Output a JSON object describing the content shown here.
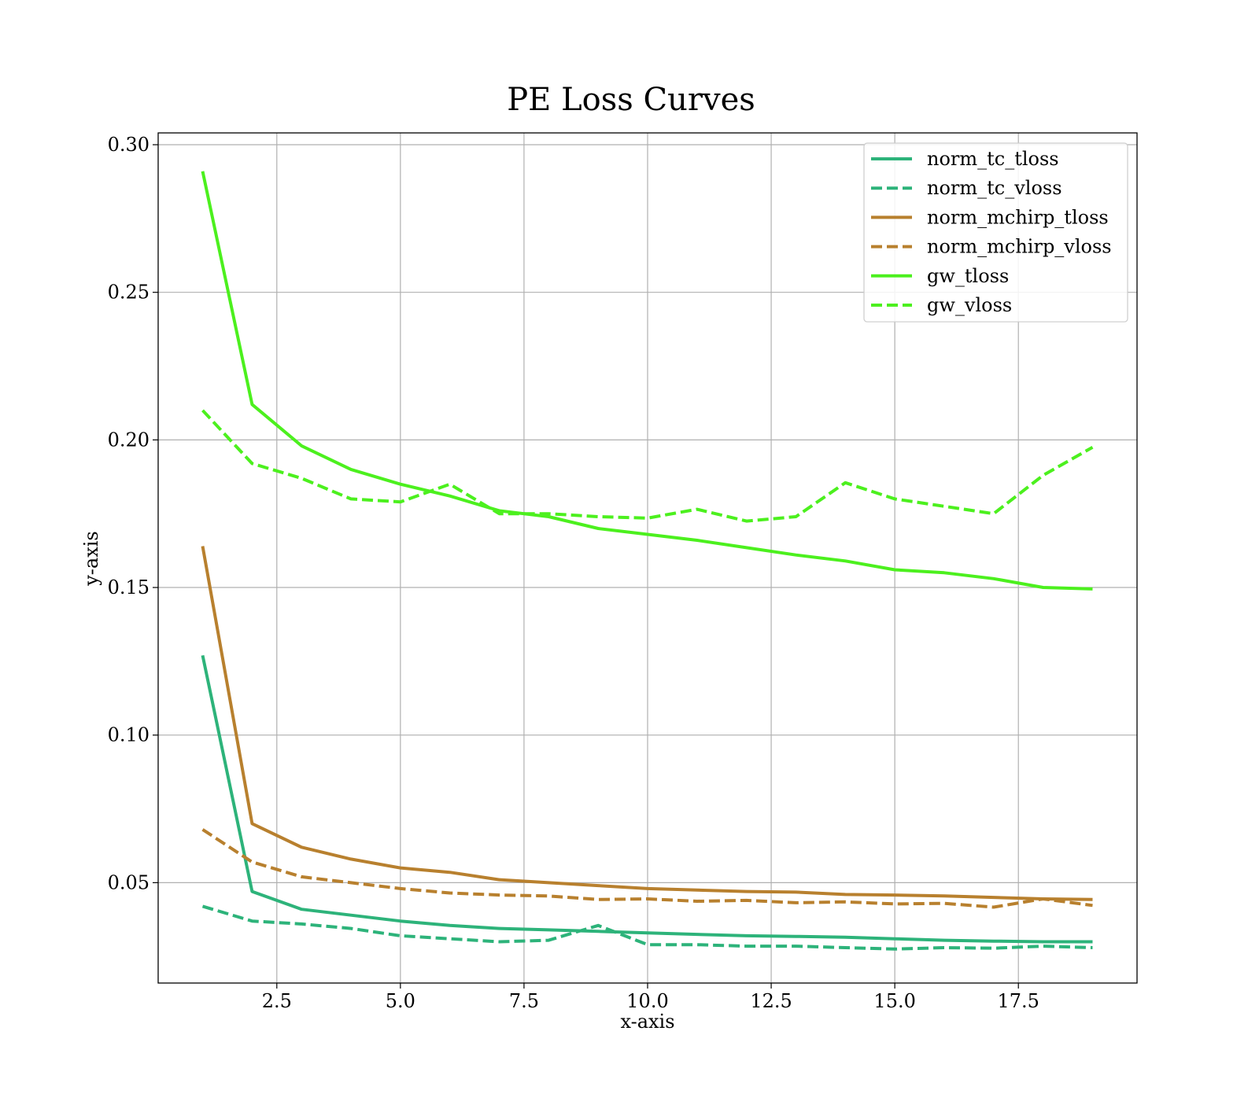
{
  "chart_data": {
    "type": "line",
    "title": "PE Loss Curves",
    "xlabel": "x-axis",
    "ylabel": "y-axis",
    "xlim": [
      0.1,
      19.9
    ],
    "ylim": [
      0.016,
      0.304
    ],
    "grid": true,
    "legend_position": "top-right",
    "xticks": [
      2.5,
      5.0,
      7.5,
      10.0,
      12.5,
      15.0,
      17.5
    ],
    "xtick_labels": [
      "2.5",
      "5.0",
      "7.5",
      "10.0",
      "12.5",
      "15.0",
      "17.5"
    ],
    "yticks": [
      0.05,
      0.1,
      0.15,
      0.2,
      0.25,
      0.3
    ],
    "ytick_labels": [
      "0.05",
      "0.10",
      "0.15",
      "0.20",
      "0.25",
      "0.30"
    ],
    "x": [
      1,
      2,
      3,
      4,
      5,
      6,
      7,
      8,
      9,
      10,
      11,
      12,
      13,
      14,
      15,
      16,
      17,
      18,
      19
    ],
    "series": [
      {
        "name": "norm_tc_tloss",
        "color": "#2db37a",
        "style": "solid",
        "values": [
          0.127,
          0.047,
          0.041,
          0.039,
          0.037,
          0.0355,
          0.0345,
          0.034,
          0.0335,
          0.033,
          0.0325,
          0.032,
          0.0318,
          0.0315,
          0.031,
          0.0305,
          0.0302,
          0.03,
          0.03
        ]
      },
      {
        "name": "norm_tc_vloss",
        "color": "#2db37a",
        "style": "dashed",
        "values": [
          0.042,
          0.037,
          0.036,
          0.0345,
          0.032,
          0.031,
          0.03,
          0.0305,
          0.0355,
          0.029,
          0.029,
          0.0285,
          0.0285,
          0.028,
          0.0275,
          0.028,
          0.0278,
          0.0285,
          0.028
        ]
      },
      {
        "name": "norm_mchirp_tloss",
        "color": "#b8802e",
        "style": "solid",
        "values": [
          0.164,
          0.07,
          0.062,
          0.058,
          0.055,
          0.0535,
          0.051,
          0.05,
          0.049,
          0.048,
          0.0475,
          0.047,
          0.0468,
          0.046,
          0.0458,
          0.0455,
          0.045,
          0.0445,
          0.0443
        ]
      },
      {
        "name": "norm_mchirp_vloss",
        "color": "#b8802e",
        "style": "dashed",
        "values": [
          0.068,
          0.057,
          0.052,
          0.05,
          0.048,
          0.0465,
          0.0458,
          0.0455,
          0.0443,
          0.0445,
          0.0437,
          0.044,
          0.0432,
          0.0435,
          0.0428,
          0.043,
          0.0417,
          0.0445,
          0.0423
        ]
      },
      {
        "name": "gw_tloss",
        "color": "#4cf01e",
        "style": "solid",
        "values": [
          0.291,
          0.212,
          0.198,
          0.19,
          0.185,
          0.181,
          0.176,
          0.174,
          0.17,
          0.168,
          0.166,
          0.1635,
          0.161,
          0.159,
          0.156,
          0.155,
          0.153,
          0.15,
          0.1495
        ]
      },
      {
        "name": "gw_vloss",
        "color": "#4cf01e",
        "style": "dashed",
        "values": [
          0.21,
          0.192,
          0.187,
          0.18,
          0.179,
          0.185,
          0.175,
          0.175,
          0.174,
          0.1735,
          0.1765,
          0.1725,
          0.174,
          0.1855,
          0.18,
          0.1775,
          0.175,
          0.188,
          0.1975
        ]
      }
    ]
  }
}
